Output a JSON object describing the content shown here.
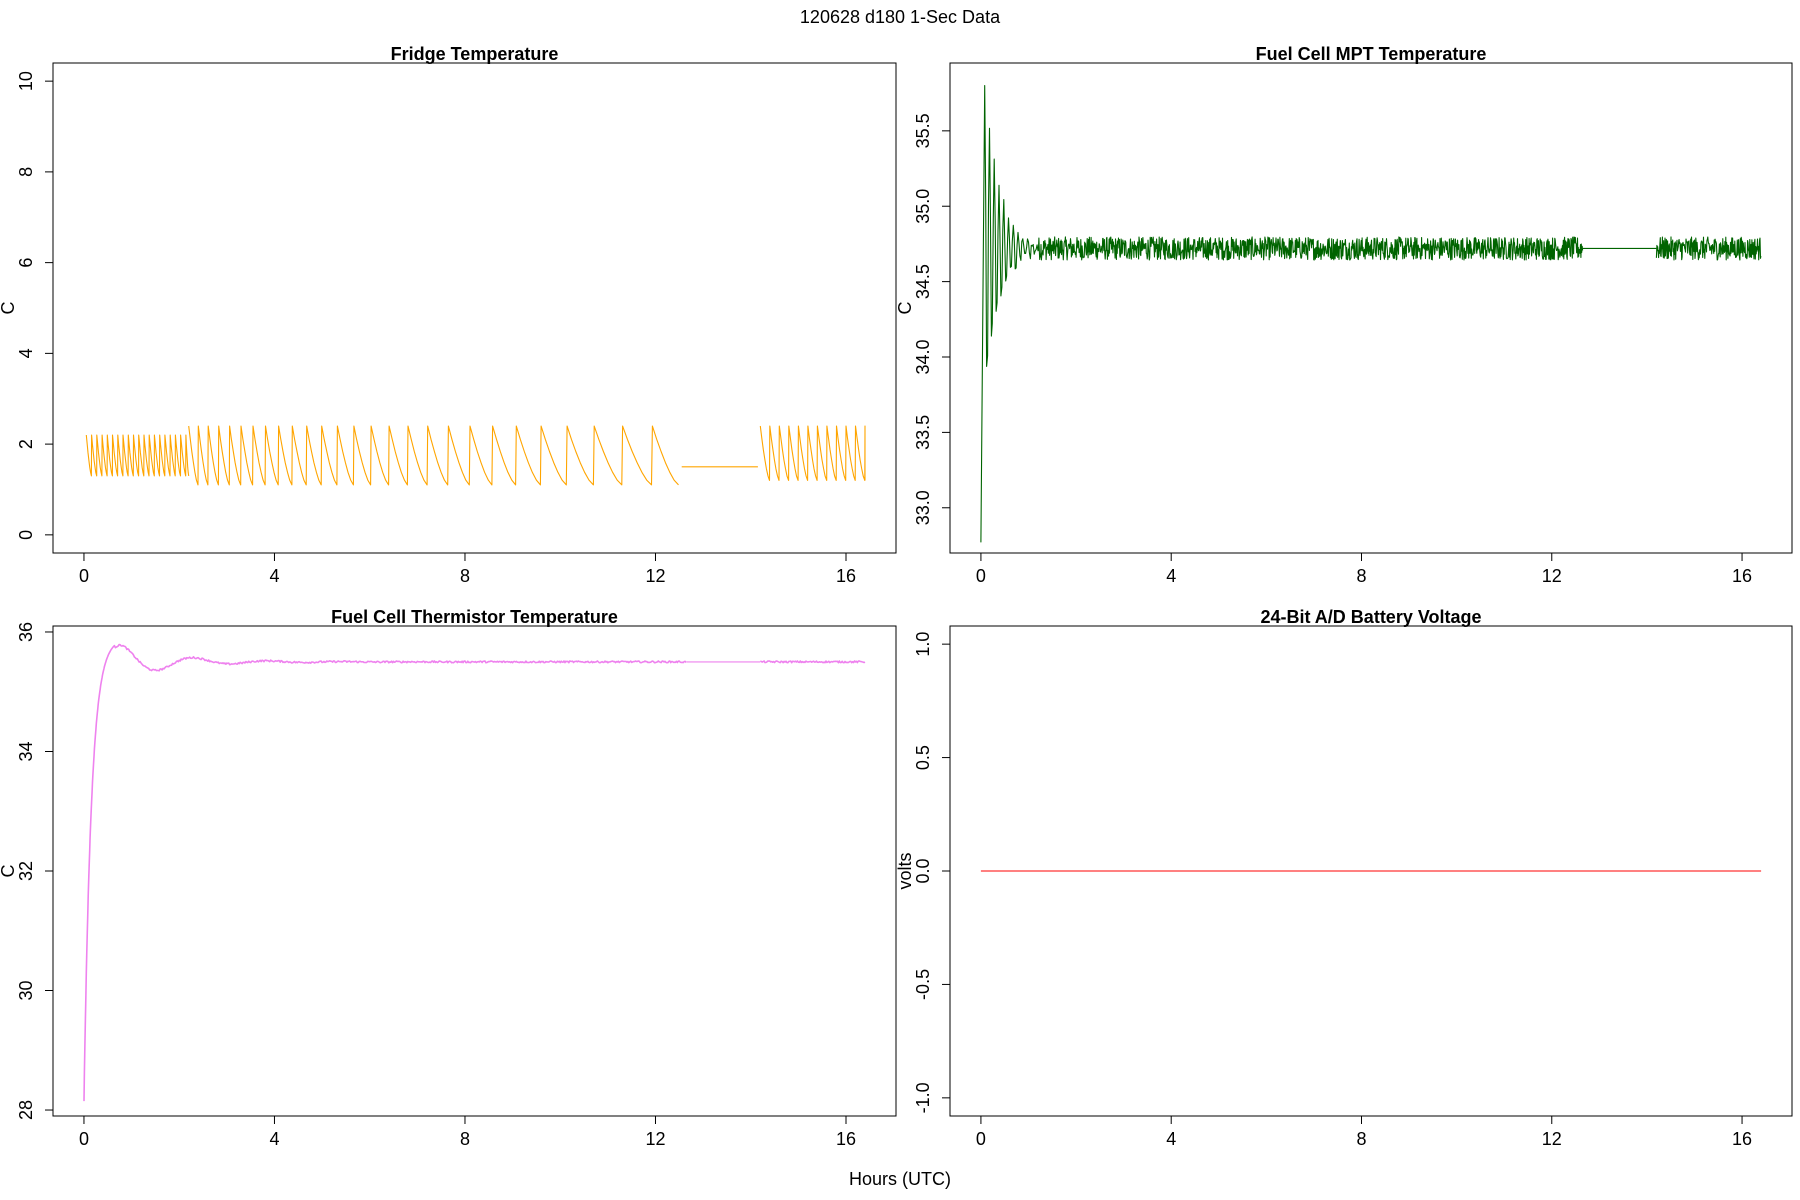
{
  "figure": {
    "suptitle": "120628   d180   1-Sec Data",
    "xlabel": "Hours (UTC)"
  },
  "chart_data": [
    {
      "type": "line",
      "title": "Fridge Temperature",
      "ylabel": "C",
      "xlabel": "",
      "xlim": [
        -0.65,
        17.05
      ],
      "ylim": [
        -0.4,
        10.4
      ],
      "xticks": [
        0,
        4,
        8,
        12,
        16
      ],
      "yticks": [
        0,
        2,
        4,
        6,
        8,
        10
      ],
      "yticklabels": [
        "0",
        "2",
        "4",
        "6",
        "8",
        "10"
      ],
      "color": "#FFA500",
      "signal": "sawtooth",
      "segments": [
        {
          "start": 0.05,
          "end": 2.2,
          "period": 0.11,
          "low": 1.3,
          "high": 2.2
        },
        {
          "start": 2.2,
          "end": 12.5,
          "low": 1.1,
          "high": 2.4,
          "period_from": 0.2,
          "period_to": 0.68
        },
        {
          "start": 14.2,
          "end": 16.4,
          "period": 0.2,
          "low": 1.2,
          "high": 2.4
        }
      ],
      "flat": {
        "start": 12.55,
        "end": 14.15,
        "value": 1.5
      }
    },
    {
      "type": "line",
      "title": "Fuel Cell MPT Temperature",
      "ylabel": "C",
      "xlabel": "",
      "xlim": [
        -0.65,
        17.05
      ],
      "ylim": [
        32.7,
        35.95
      ],
      "xticks": [
        0,
        4,
        8,
        12,
        16
      ],
      "yticks": [
        33.0,
        33.5,
        34.0,
        34.5,
        35.0,
        35.5
      ],
      "yticklabels": [
        "33.0",
        "33.5",
        "34.0",
        "34.5",
        "35.0",
        "35.5"
      ],
      "color": "#006400",
      "signal": "damped-noise",
      "start": {
        "x": 0.0,
        "y": 32.77
      },
      "peak": {
        "x": 0.08,
        "y": 35.8
      },
      "steady": 34.72,
      "noise": 0.07,
      "segments": [
        {
          "start": 0.0,
          "end": 12.65
        },
        {
          "start": 14.2,
          "end": 16.4
        }
      ],
      "flat": {
        "start": 12.65,
        "end": 14.2,
        "value": 34.72
      }
    },
    {
      "type": "line",
      "title": "Fuel Cell Thermistor Temperature",
      "ylabel": "C",
      "xlabel": "",
      "xlim": [
        -0.65,
        17.05
      ],
      "ylim": [
        27.9,
        36.1
      ],
      "xticks": [
        0,
        4,
        8,
        12,
        16
      ],
      "yticks": [
        28,
        30,
        32,
        34,
        36
      ],
      "yticklabels": [
        "28",
        "30",
        "32",
        "34",
        "36"
      ],
      "color": "#EE82EE",
      "signal": "step-response",
      "start": {
        "x": 0.0,
        "y": 28.15
      },
      "steady": 35.5,
      "overshoot_peak": {
        "x": 0.78,
        "y": 35.78
      },
      "segments": [
        {
          "start": 0.0,
          "end": 12.65
        },
        {
          "start": 14.2,
          "end": 16.4
        }
      ],
      "flat": {
        "start": 12.65,
        "end": 14.2,
        "value": 35.5
      }
    },
    {
      "type": "line",
      "title": "24-Bit A/D Battery Voltage",
      "ylabel": "volts",
      "xlabel": "",
      "xlim": [
        -0.65,
        17.05
      ],
      "ylim": [
        -1.08,
        1.08
      ],
      "xticks": [
        0,
        4,
        8,
        12,
        16
      ],
      "yticks": [
        -1.0,
        -0.5,
        0.0,
        0.5,
        1.0
      ],
      "yticklabels": [
        "-1.0",
        "-0.5",
        "0.0",
        "0.5",
        "1.0"
      ],
      "color": "#FF0000",
      "signal": "constant",
      "x": [
        0.0,
        16.4
      ],
      "y": [
        0.0,
        0.0
      ]
    }
  ]
}
